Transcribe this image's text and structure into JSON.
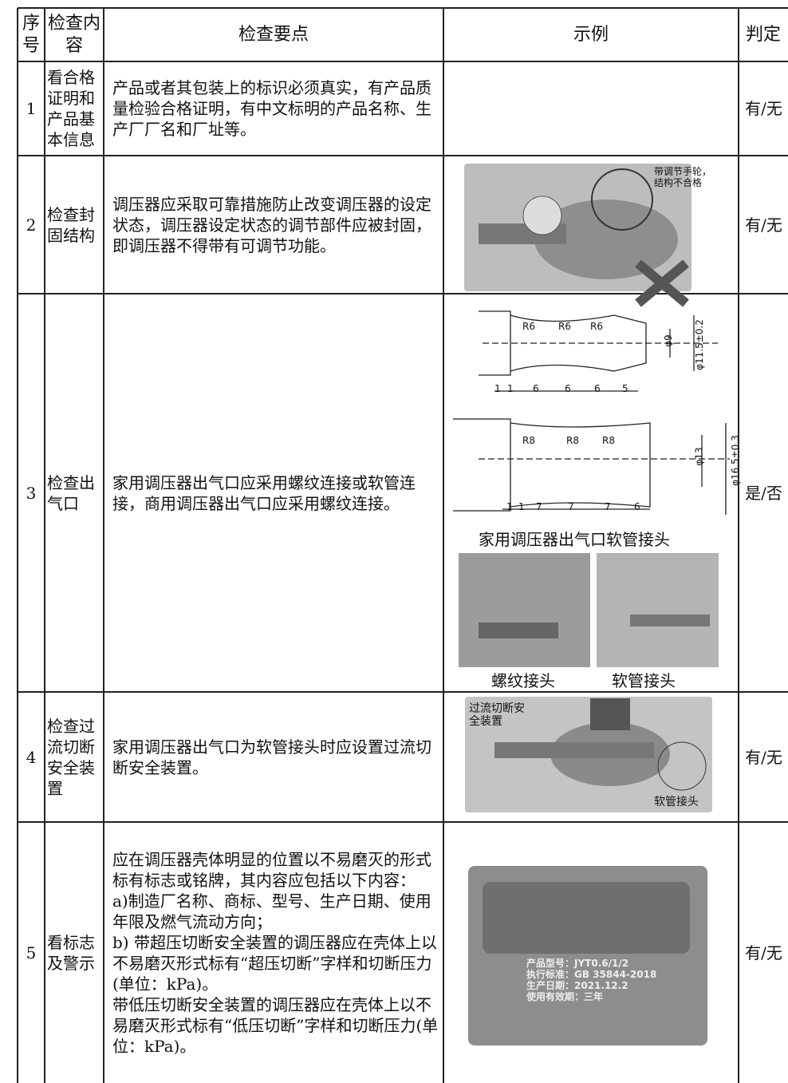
{
  "table": {
    "header": [
      "序号",
      "检查内容",
      "检查要点",
      "示例",
      "判定"
    ],
    "rows": [
      {
        "no": "1",
        "item": "看合格证明和产品基本信息",
        "points": [
          "产品或者其包装上的标识必须真实，有产品质量检验合格证明，有中文标明的产品名称、生产厂厂名和厂址等。"
        ],
        "verdict": "有/无"
      },
      {
        "no": "2",
        "item": "检查封固结构",
        "points": [
          "调压器应采取可靠措施防止改变调压器的设定状态，调压器设定状态的调节部件应被封固，即调压器不得带有可调节功能。"
        ],
        "verdict": "有/无",
        "example": {
          "labels": [
            "带调节手轮，结构不合格"
          ]
        }
      },
      {
        "no": "3",
        "item": "检查出气口",
        "points": [
          "家用调压器出气口应采用螺纹连接或软管连接，商用调压器出气口应采用螺纹连接。"
        ],
        "verdict": "是/否",
        "example": {
          "drawing1": [
            "R6",
            "R6",
            "R6",
            "φ9",
            "φ11.5±0.2",
            "1",
            "1",
            "6",
            "6",
            "6",
            "5"
          ],
          "drawing2": [
            "R8",
            "R8",
            "R8",
            "φ13",
            "φ16.5±0.3",
            "1",
            "1",
            "7",
            "7",
            "7",
            "6"
          ],
          "caption": "家用调压器出气口软管接头",
          "labels": [
            "螺纹接头",
            "软管接头"
          ]
        }
      },
      {
        "no": "4",
        "item": "检查过流切断安全装置",
        "points": [
          "家用调压器出气口为软管接头时应设置过流切断安全装置。"
        ],
        "verdict": "有/无",
        "example": {
          "labels": [
            "过流切断安全装置",
            "软管接头"
          ]
        }
      },
      {
        "no": "5",
        "item": "看标志及警示",
        "points": [
          "应在调压器壳体明显的位置以不易磨灭的形式标有标志或铭牌，其内容应包括以下内容：",
          "a)制造厂名称、商标、型号、生产日期、使用年限及燃气流动方向；",
          "b) 带超压切断安全装置的调压器应在壳体上以不易磨灭形式标有“超压切断”字样和切断压力(单位：kPa)。",
          "带低压切断安全装置的调压器应在壳体上以不易磨灭形式标有“低压切断”字样和切断压力(单位：kPa)。"
        ],
        "verdict": "有/无",
        "example": {
          "labels": [
            "产品型号：JYT0.6/1/2",
            "执行标准：GB 35844-2018",
            "生产日期：2021.12.2",
            "使用有效期：三年"
          ]
        }
      }
    ]
  }
}
